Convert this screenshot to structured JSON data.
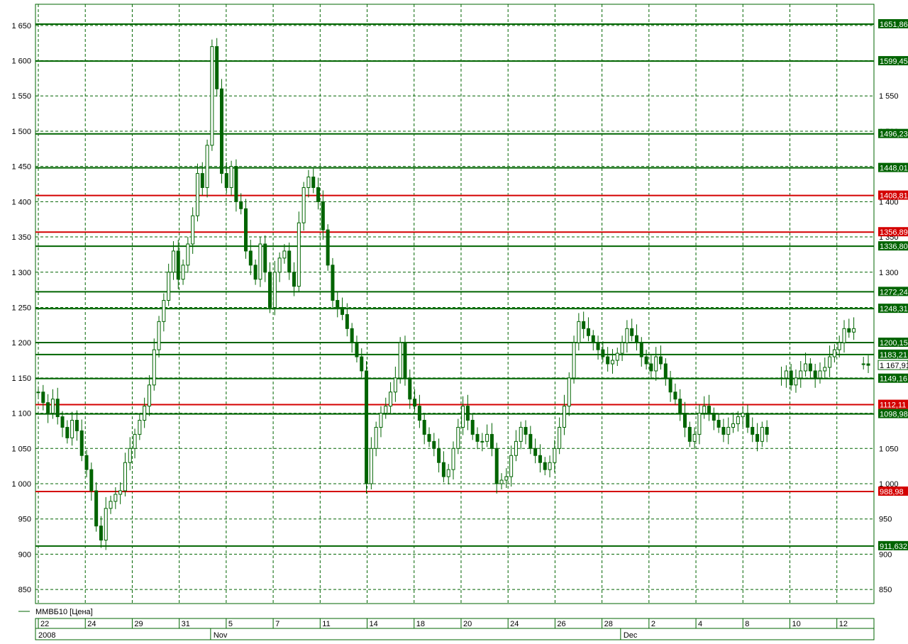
{
  "chart_data": {
    "type": "candlestick",
    "series_name": "ММВБ10 [Цена]",
    "y_range": [
      830,
      1680
    ],
    "y_ticks": [
      850,
      900,
      950,
      1000,
      1050,
      1100,
      1150,
      1200,
      1250,
      1300,
      1350,
      1400,
      1450,
      1500,
      1550,
      1600,
      1650
    ],
    "y_tick_labels": [
      "850",
      "900",
      "950",
      "1 000",
      "1 050",
      "1 100",
      "1 150",
      "1 200",
      "1 250",
      "1 300",
      "1 350",
      "1 400",
      "1 450",
      "1 500",
      "1 550",
      "1 600",
      "1 650"
    ],
    "x_day_labels": [
      "22",
      "24",
      "29",
      "31",
      "5",
      "7",
      "11",
      "14",
      "18",
      "20",
      "24",
      "26",
      "28",
      "2",
      "4",
      "8",
      "10",
      "12"
    ],
    "x_year_labels": [
      "2008",
      "Nov",
      "Dec"
    ],
    "grid": true,
    "last_price_label": "1 167,91",
    "last_price": 1167.91,
    "levels": [
      {
        "value": 1651.86,
        "label": "1651,86",
        "color": "#006400"
      },
      {
        "value": 1599.45,
        "label": "1599,45",
        "color": "#006400"
      },
      {
        "value": 1496.23,
        "label": "1496,23",
        "color": "#006400"
      },
      {
        "value": 1448.01,
        "label": "1448,01",
        "color": "#006400"
      },
      {
        "value": 1408.81,
        "label": "1408,81",
        "color": "#d40000"
      },
      {
        "value": 1356.89,
        "label": "1356,89",
        "color": "#d40000"
      },
      {
        "value": 1336.8,
        "label": "1336,80",
        "color": "#006400"
      },
      {
        "value": 1272.24,
        "label": "1272,24",
        "color": "#006400"
      },
      {
        "value": 1248.31,
        "label": "1248,31",
        "color": "#006400"
      },
      {
        "value": 1200.15,
        "label": "1200,15",
        "color": "#006400"
      },
      {
        "value": 1183.21,
        "label": "1183,21",
        "color": "#006400"
      },
      {
        "value": 1149.16,
        "label": "1149,16",
        "color": "#006400"
      },
      {
        "value": 1112.11,
        "label": "1112,11",
        "color": "#d40000"
      },
      {
        "value": 1098.98,
        "label": "1098,98",
        "color": "#006400"
      },
      {
        "value": 988.98,
        "label": "988,98",
        "color": "#d40000"
      },
      {
        "value": 911.63,
        "label": "911,632",
        "color": "#006400"
      }
    ],
    "price_path": [
      1130,
      1115,
      1100,
      1120,
      1095,
      1080,
      1065,
      1090,
      1075,
      1040,
      1020,
      990,
      940,
      920,
      965,
      975,
      985,
      990,
      1030,
      1050,
      1070,
      1090,
      1110,
      1140,
      1190,
      1230,
      1260,
      1300,
      1330,
      1290,
      1310,
      1340,
      1380,
      1440,
      1420,
      1480,
      1620,
      1560,
      1440,
      1420,
      1450,
      1400,
      1390,
      1330,
      1310,
      1290,
      1340,
      1300,
      1250,
      1300,
      1320,
      1330,
      1300,
      1280,
      1370,
      1420,
      1435,
      1420,
      1400,
      1360,
      1310,
      1260,
      1250,
      1240,
      1220,
      1200,
      1180,
      1160,
      1000,
      1050,
      1080,
      1100,
      1110,
      1130,
      1150,
      1200,
      1150,
      1120,
      1110,
      1090,
      1070,
      1060,
      1050,
      1030,
      1010,
      1020,
      1050,
      1080,
      1110,
      1090,
      1070,
      1060,
      1060,
      1070,
      1050,
      1000,
      1005,
      1010,
      1040,
      1060,
      1080,
      1070,
      1050,
      1040,
      1030,
      1020,
      1030,
      1050,
      1080,
      1110,
      1150,
      1200,
      1230,
      1220,
      1210,
      1200,
      1190,
      1180,
      1170,
      1175,
      1185,
      1200,
      1220,
      1210,
      1200,
      1180,
      1170,
      1160,
      1180,
      1170,
      1150,
      1130,
      1120,
      1100,
      1080,
      1060,
      1070,
      1100,
      1110,
      1100,
      1090,
      1080,
      1070,
      1080,
      1085,
      1095,
      1100,
      1080,
      1070,
      1060,
      1080,
      1070,
      null,
      null,
      1150,
      1160,
      1140,
      1150,
      1160,
      1170,
      1160,
      1150,
      1160,
      1165,
      1180,
      1190,
      1200,
      1220,
      1215,
      1220,
      null,
      1170,
      1167.91
    ]
  }
}
